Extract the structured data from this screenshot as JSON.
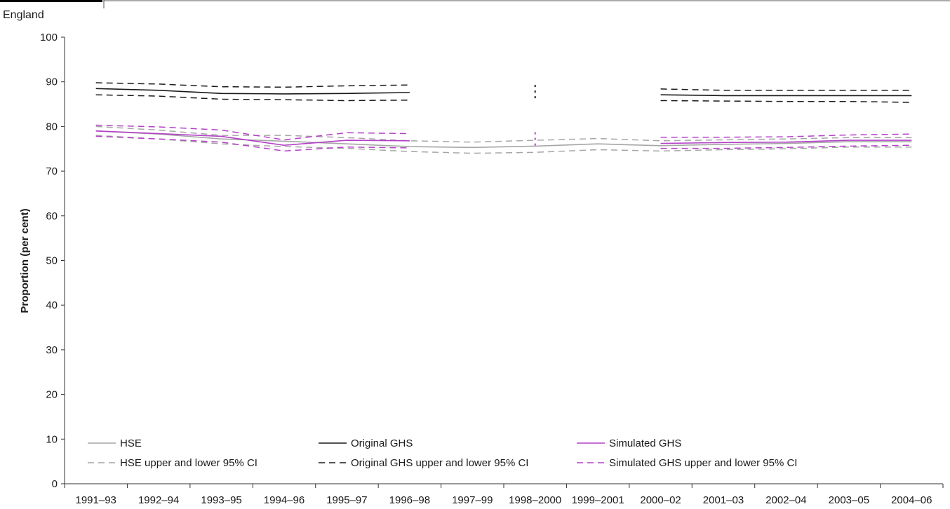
{
  "chart_data": {
    "type": "line",
    "subtitle": "England",
    "ylabel": "Proportion (per cent)",
    "xlabel": "",
    "ylim": [
      0,
      100
    ],
    "yticks": [
      0,
      10,
      20,
      30,
      40,
      50,
      60,
      70,
      80,
      90,
      100
    ],
    "categories": [
      "1991–93",
      "1992–94",
      "1993–95",
      "1994–96",
      "1995–97",
      "1996–98",
      "1997–99",
      "1998–2000",
      "1999–2001",
      "2000–02",
      "2001–03",
      "2002–04",
      "2003–05",
      "2004–06"
    ],
    "grid": false,
    "legend_position": "bottom",
    "series": [
      {
        "name": "HSE",
        "color": "#a6a6a6",
        "dash": "solid",
        "values": [
          79.0,
          78.3,
          77.2,
          76.7,
          76.1,
          75.5,
          75.3,
          75.6,
          76.1,
          75.7,
          76.0,
          76.2,
          76.6,
          76.6
        ]
      },
      {
        "name": "HSE upper and lower 95% CI",
        "color": "#a6a6a6",
        "dash": "dashed",
        "values": [
          80.0,
          79.2,
          78.0,
          78.0,
          77.5,
          76.8,
          76.5,
          76.9,
          77.3,
          76.8,
          77.0,
          77.2,
          77.5,
          77.5
        ]
      },
      {
        "name": "",
        "color": "#a6a6a6",
        "dash": "dashed",
        "values": [
          78.0,
          77.2,
          76.1,
          75.5,
          75.1,
          74.4,
          74.0,
          74.2,
          74.8,
          74.5,
          74.8,
          75.0,
          75.4,
          75.4
        ]
      },
      {
        "name": "Original GHS",
        "color": "#1a1a1a",
        "dash": "solid",
        "values": [
          88.5,
          88.1,
          87.4,
          87.3,
          87.4,
          87.6,
          null,
          null,
          null,
          87.1,
          86.9,
          86.9,
          86.9,
          86.9
        ]
      },
      {
        "name": "Original GHS upper and lower 95% CI",
        "color": "#1a1a1a",
        "dash": "dashed",
        "values": [
          89.8,
          89.5,
          88.9,
          88.8,
          89.1,
          89.3,
          null,
          null,
          null,
          88.4,
          88.1,
          88.1,
          88.1,
          88.1
        ]
      },
      {
        "name": "",
        "color": "#1a1a1a",
        "dash": "dashed",
        "values": [
          87.1,
          86.8,
          86.1,
          86.0,
          85.8,
          85.9,
          null,
          null,
          null,
          85.8,
          85.7,
          85.6,
          85.6,
          85.4
        ]
      },
      {
        "name": "Simulated GHS",
        "color": "#b440c8",
        "dash": "solid",
        "values": [
          79.0,
          78.4,
          77.8,
          75.8,
          76.9,
          76.8,
          null,
          null,
          null,
          76.2,
          76.4,
          76.5,
          76.9,
          76.9
        ]
      },
      {
        "name": "Simulated GHS upper and lower 95% CI",
        "color": "#b440c8",
        "dash": "dashed",
        "values": [
          80.3,
          79.9,
          79.2,
          77.0,
          78.6,
          78.4,
          null,
          null,
          null,
          77.6,
          77.6,
          77.7,
          78.1,
          78.3
        ]
      },
      {
        "name": "",
        "color": "#b440c8",
        "dash": "dashed",
        "values": [
          77.8,
          77.2,
          76.5,
          74.5,
          75.4,
          75.2,
          null,
          null,
          null,
          75.1,
          75.1,
          75.3,
          75.6,
          75.8
        ]
      }
    ],
    "break_markers": [
      {
        "category": "1998–2000",
        "from": 85.8,
        "to": 89.3,
        "color": "#1a1a1a"
      },
      {
        "category": "1998–2000",
        "from": 75.4,
        "to": 78.7,
        "color": "#b440c8"
      }
    ],
    "legend": [
      {
        "label": "HSE",
        "color": "#a6a6a6",
        "dash": "solid"
      },
      {
        "label": "Original GHS",
        "color": "#1a1a1a",
        "dash": "solid"
      },
      {
        "label": "Simulated GHS",
        "color": "#b440c8",
        "dash": "solid"
      },
      {
        "label": "HSE upper and lower 95% CI",
        "color": "#a6a6a6",
        "dash": "dashed"
      },
      {
        "label": "Original GHS upper and lower 95% CI",
        "color": "#1a1a1a",
        "dash": "dashed"
      },
      {
        "label": "Simulated GHS upper and lower 95% CI",
        "color": "#b440c8",
        "dash": "dashed"
      }
    ]
  }
}
